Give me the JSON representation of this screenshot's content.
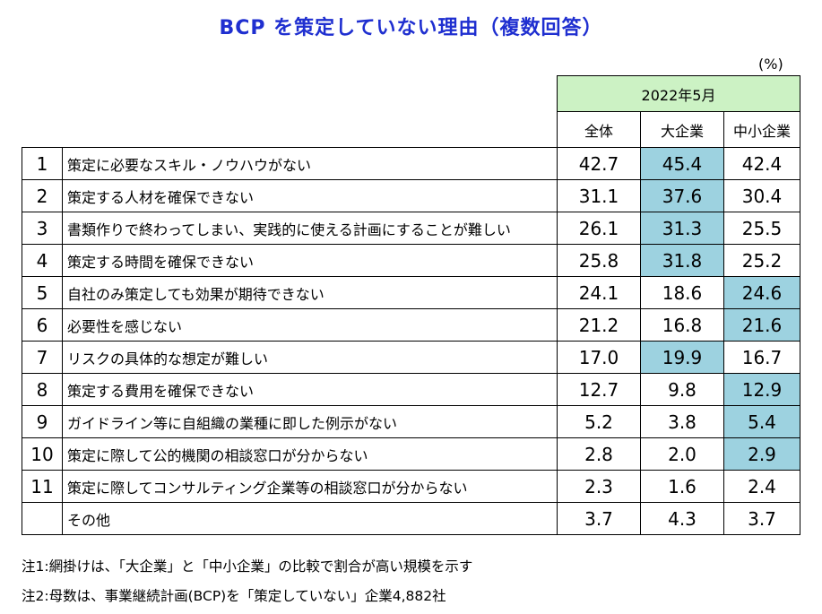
{
  "title": "BCP を策定していない理由（複数回答）",
  "unit": "(%)",
  "period": "2022年5月",
  "columns": [
    "全体",
    "大企業",
    "中小企業"
  ],
  "rows": [
    {
      "no": "1",
      "label": "策定に必要なスキル・ノウハウがない",
      "values": [
        "42.7",
        "45.4",
        "42.4"
      ],
      "highlight": 1
    },
    {
      "no": "2",
      "label": "策定する人材を確保できない",
      "values": [
        "31.1",
        "37.6",
        "30.4"
      ],
      "highlight": 1
    },
    {
      "no": "3",
      "label": "書類作りで終わってしまい、実践的に使える計画にすることが難しい",
      "values": [
        "26.1",
        "31.3",
        "25.5"
      ],
      "highlight": 1
    },
    {
      "no": "4",
      "label": "策定する時間を確保できない",
      "values": [
        "25.8",
        "31.8",
        "25.2"
      ],
      "highlight": 1
    },
    {
      "no": "5",
      "label": "自社のみ策定しても効果が期待できない",
      "values": [
        "24.1",
        "18.6",
        "24.6"
      ],
      "highlight": 2
    },
    {
      "no": "6",
      "label": "必要性を感じない",
      "values": [
        "21.2",
        "16.8",
        "21.6"
      ],
      "highlight": 2
    },
    {
      "no": "7",
      "label": "リスクの具体的な想定が難しい",
      "values": [
        "17.0",
        "19.9",
        "16.7"
      ],
      "highlight": 1
    },
    {
      "no": "8",
      "label": "策定する費用を確保できない",
      "values": [
        "12.7",
        "9.8",
        "12.9"
      ],
      "highlight": 2
    },
    {
      "no": "9",
      "label": "ガイドライン等に自組織の業種に即した例示がない",
      "values": [
        "5.2",
        "3.8",
        "5.4"
      ],
      "highlight": 2
    },
    {
      "no": "10",
      "label": "策定に際して公的機関の相談窓口が分からない",
      "values": [
        "2.8",
        "2.0",
        "2.9"
      ],
      "highlight": 2
    },
    {
      "no": "11",
      "label": "策定に際してコンサルティング企業等の相談窓口が分からない",
      "values": [
        "2.3",
        "1.6",
        "2.4"
      ],
      "highlight": null
    },
    {
      "no": "",
      "label": "その他",
      "values": [
        "3.7",
        "4.3",
        "3.7"
      ],
      "highlight": null
    }
  ],
  "notes": [
    "注1:網掛けは、「大企業」と「中小企業」の比較で割合が高い規模を示す",
    "注2:母数は、事業継続計画(BCP)を「策定していない」企業4,882社"
  ],
  "colors": {
    "title": "#1f2fd0",
    "highlight": "#9dd2e0",
    "period_bg": "#ccf2c4"
  }
}
